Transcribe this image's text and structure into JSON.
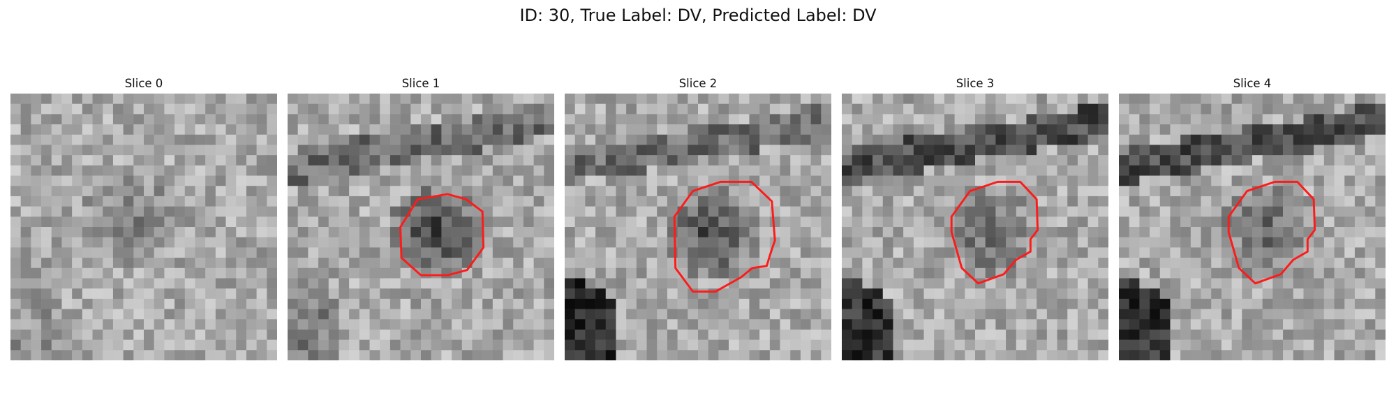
{
  "figure": {
    "title": "ID: 30, True Label: DV, Predicted Label: DV"
  },
  "slices": [
    {
      "label": "Slice 0",
      "contour": false,
      "seed": 11,
      "blob": 0.45,
      "band": 0.0,
      "corner": 0.15
    },
    {
      "label": "Slice 1",
      "contour": true,
      "seed": 23,
      "blob": 0.85,
      "band": 0.55,
      "corner": 0.3
    },
    {
      "label": "Slice 2",
      "contour": true,
      "seed": 37,
      "blob": 0.8,
      "band": 0.55,
      "corner": 0.9
    },
    {
      "label": "Slice 3",
      "contour": true,
      "seed": 41,
      "blob": 0.55,
      "band": 0.85,
      "corner": 0.85
    },
    {
      "label": "Slice 4",
      "contour": true,
      "seed": 53,
      "blob": 0.55,
      "band": 0.85,
      "corner": 0.85
    }
  ],
  "colors": {
    "contour": "#ff1a1a",
    "background": "#ffffff"
  }
}
